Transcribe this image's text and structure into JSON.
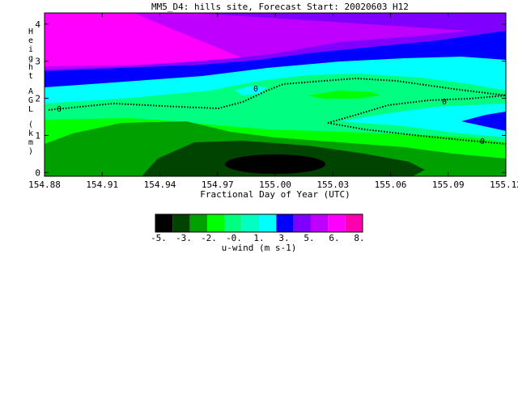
{
  "chart_data": {
    "type": "heatmap",
    "title": "MM5_D4: hills site,  Forecast Start: 20020603 H12",
    "xlabel": "Fractional Day of Year (UTC)",
    "ylabel": "Height AGL (km)",
    "x_ticks": [
      "154.88",
      "154.91",
      "154.94",
      "154.97",
      "155.00",
      "155.03",
      "155.06",
      "155.09",
      "155.12"
    ],
    "y_ticks": [
      "0",
      "1",
      "2",
      "3",
      "4"
    ],
    "xlim": [
      154.88,
      155.12
    ],
    "ylim": [
      -0.1,
      4.3
    ],
    "contour_label": "0",
    "colorbar": {
      "label": "u-wind (m s-1)",
      "tick_labels": [
        "-5.",
        "-3.",
        "-2.",
        "-0.",
        "1.",
        "3.",
        "5.",
        "6.",
        "8."
      ],
      "colors": [
        "#000000",
        "#004400",
        "#00a000",
        "#00ff00",
        "#00ff80",
        "#00ffc0",
        "#00ffff",
        "#0000ff",
        "#8000ff",
        "#c000ff",
        "#ff00ff",
        "#ff00b0"
      ]
    },
    "level_colors": {
      "L1": "#000000",
      "L2": "#004400",
      "L3": "#00a000",
      "L4": "#00ff00",
      "L5": "#00ff80",
      "L6": "#00ffff",
      "L7": "#0000ff",
      "L8": "#8000ff",
      "L9": "#c000ff",
      "L10": "#ff00ff",
      "L11": "#ff40c0"
    }
  }
}
